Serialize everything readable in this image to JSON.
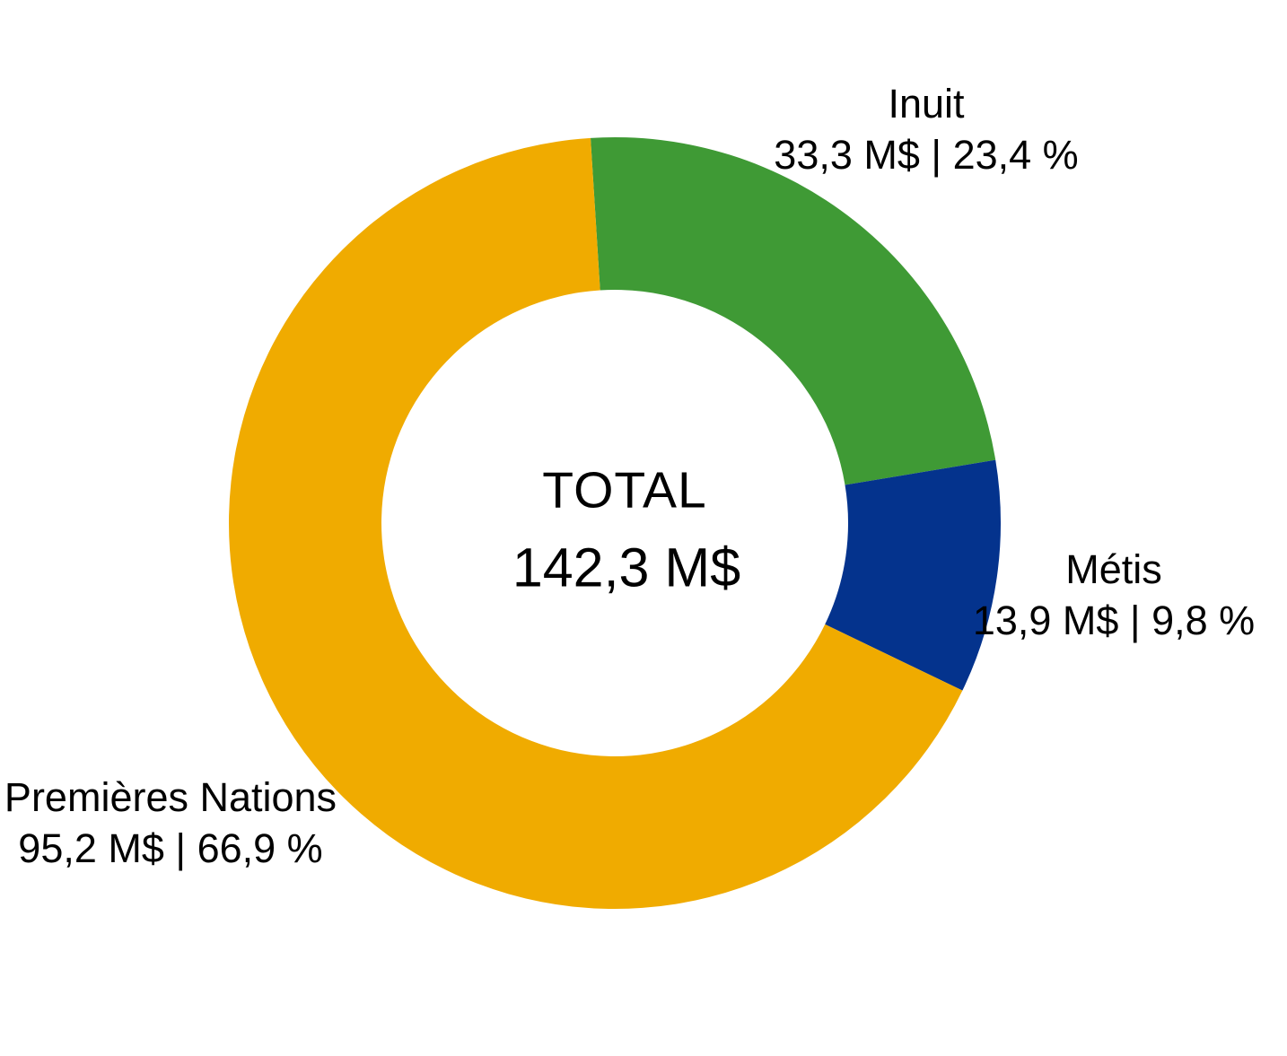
{
  "chart_data": {
    "type": "pie",
    "subtype": "donut",
    "title": "",
    "units": "M$",
    "total": 142.3,
    "center": {
      "label": "TOTAL",
      "value": "142,3 M$"
    },
    "slices": [
      {
        "label": "Inuit",
        "value": 33.3,
        "percent": 23.4,
        "display": "33,3 M$ | 23,4 %",
        "color": "#3F9A35"
      },
      {
        "label": "Métis",
        "value": 13.9,
        "percent": 9.8,
        "display": "13,9 M$ | 9,8 %",
        "color": "#04338D"
      },
      {
        "label": "Premières Nations",
        "value": 95.2,
        "percent": 66.9,
        "display": "95,2 M$ | 66,9 %",
        "color": "#F0AB00"
      }
    ],
    "layout": {
      "start_angle_deg": -3.6,
      "direction": "clockwise",
      "inner_radius_ratio": 0.605,
      "legend": "none",
      "label_style": "free-text-around-ring",
      "background": "#FFFFFF",
      "text_color": "#000000"
    }
  }
}
